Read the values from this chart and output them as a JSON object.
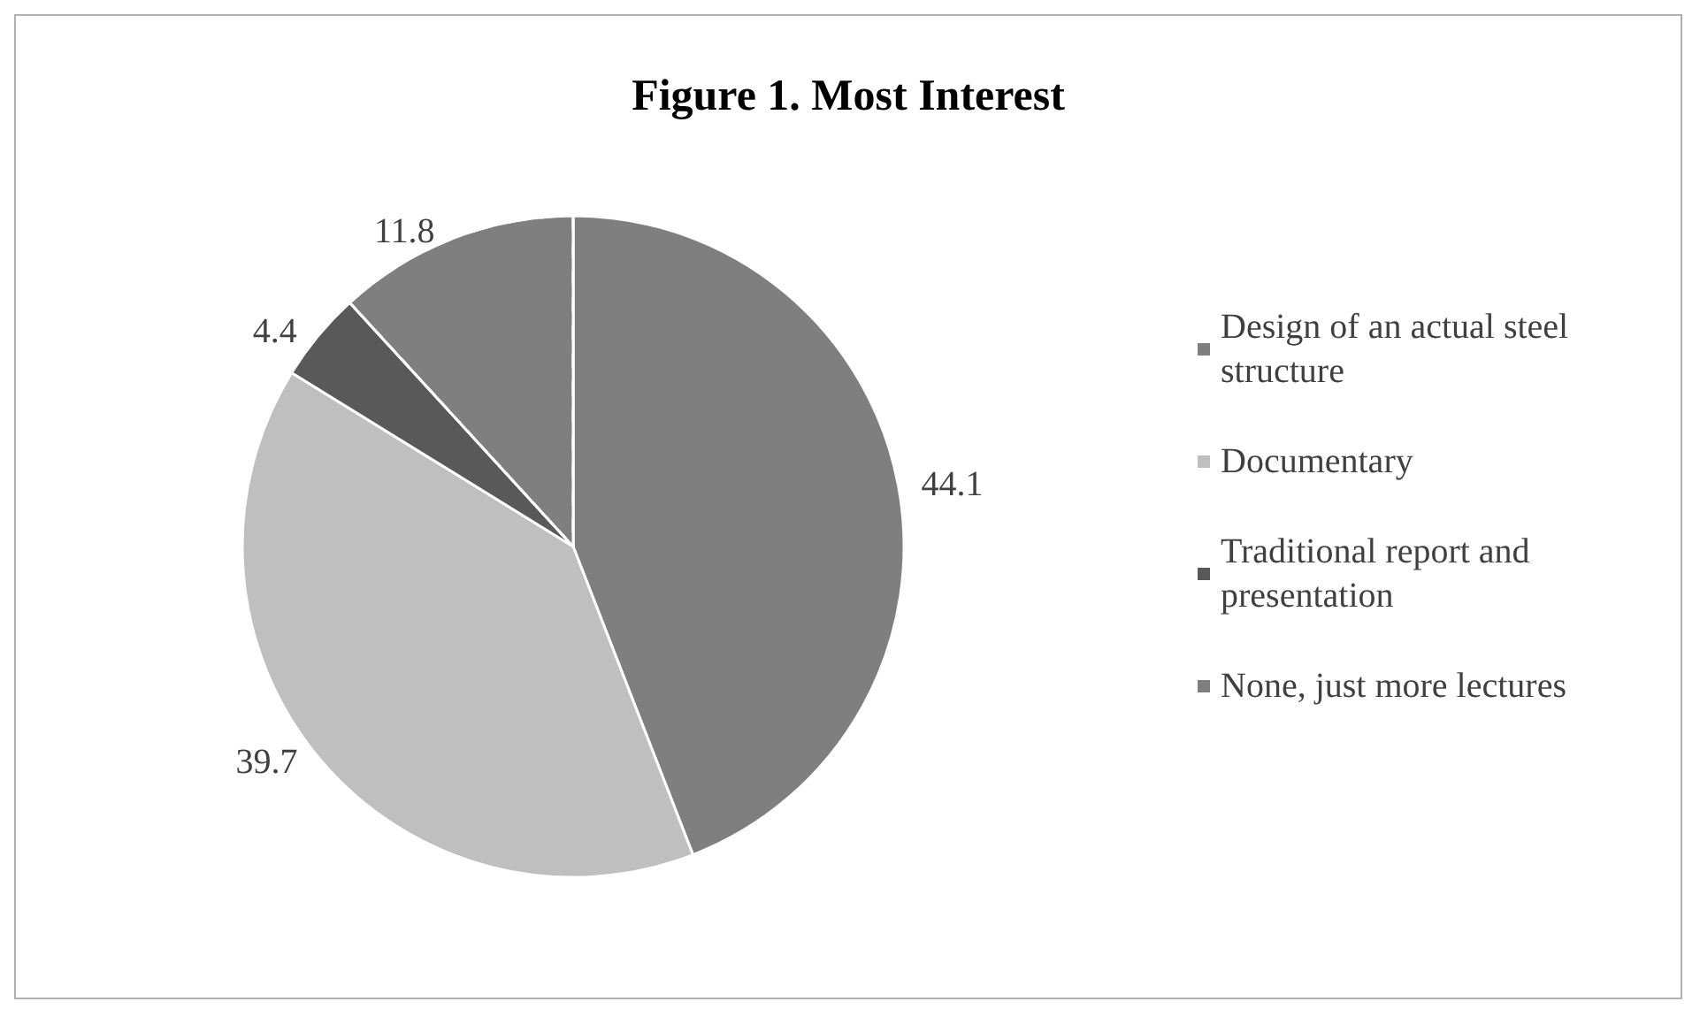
{
  "chart_data": {
    "type": "pie",
    "title": "Figure 1. Most Interest",
    "categories": [
      "Design of an actual steel structure",
      "Documentary",
      "Traditional report and presentation",
      "None, just more lectures"
    ],
    "values": [
      44.1,
      39.7,
      4.4,
      11.8
    ],
    "colors": [
      "#7f7f7f",
      "#bfbfbf",
      "#595959",
      "#7f7f7f"
    ],
    "data_labels": true,
    "legend": "right"
  }
}
